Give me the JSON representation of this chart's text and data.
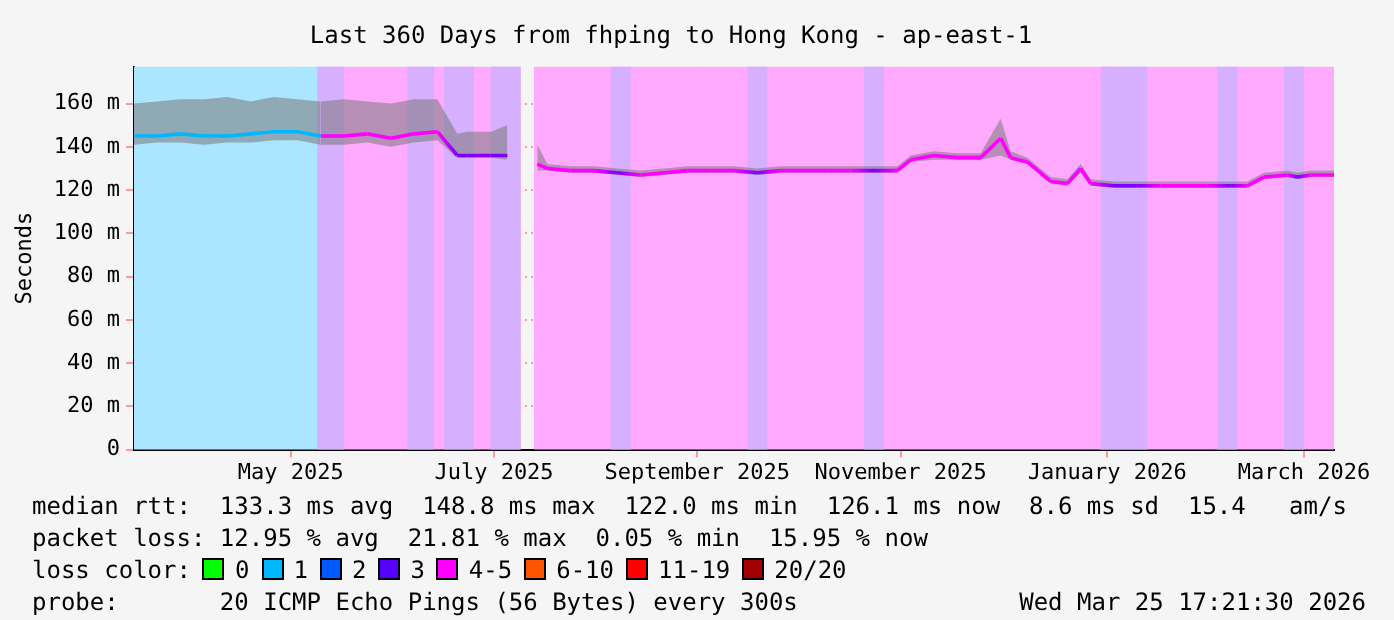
{
  "chart_data": {
    "type": "line",
    "title": "Last 360 Days from fhping to Hong Kong - ap-east-1",
    "ylabel": "Seconds",
    "series": [
      {
        "color": "#00b8ff",
        "x": [
          "2025-03-30",
          "2025-04-06",
          "2025-04-13",
          "2025-04-20",
          "2025-04-27",
          "2025-05-04",
          "2025-05-11",
          "2025-05-18",
          "2025-05-25"
        ],
        "values": [
          145,
          145,
          146,
          145,
          145,
          146,
          147,
          147,
          145
        ],
        "lower": [
          141,
          142,
          142,
          141,
          142,
          142,
          143,
          143,
          141
        ],
        "upper": [
          160,
          161,
          162,
          162,
          163,
          161,
          163,
          162,
          161
        ]
      },
      {
        "color": "#ff00ff",
        "x": [
          "2025-05-25",
          "2025-06-01",
          "2025-06-08",
          "2025-06-15",
          "2025-06-22",
          "2025-06-29",
          "2025-07-05",
          "2025-07-08",
          "2025-07-15",
          "2025-07-20",
          "2025-07-26",
          "2025-07-29",
          "2025-08-01",
          "2025-08-08",
          "2025-08-15",
          "2025-08-22",
          "2025-08-29",
          "2025-09-05",
          "2025-09-12",
          "2025-09-19",
          "2025-09-26",
          "2025-10-03",
          "2025-10-10",
          "2025-10-17",
          "2025-10-24",
          "2025-10-31",
          "2025-11-07",
          "2025-11-14",
          "2025-11-18",
          "2025-11-25",
          "2025-12-02",
          "2025-12-09",
          "2025-12-15",
          "2025-12-18",
          "2025-12-23",
          "2025-12-30",
          "2026-01-04",
          "2026-01-08",
          "2026-01-11",
          "2026-01-18",
          "2026-01-25",
          "2026-02-01",
          "2026-02-08",
          "2026-02-15",
          "2026-02-22",
          "2026-02-27",
          "2026-03-04",
          "2026-03-11",
          "2026-03-14",
          "2026-03-18",
          "2026-03-25"
        ],
        "values": [
          145,
          145,
          146,
          144,
          146,
          147,
          136,
          136,
          136,
          136,
          null,
          132,
          130,
          129,
          129,
          128,
          127,
          128,
          129,
          129,
          129,
          128,
          129,
          129,
          129,
          129,
          129,
          129,
          134,
          136,
          135,
          135,
          144,
          135,
          133,
          124,
          123,
          130,
          123,
          122,
          122,
          122,
          122,
          122,
          122,
          122,
          126,
          127,
          126,
          127,
          127
        ],
        "lower": [
          141,
          141,
          142,
          140,
          142,
          143,
          135,
          135,
          135,
          134,
          null,
          129,
          129,
          128,
          128,
          127,
          126,
          127,
          128,
          128,
          128,
          127,
          128,
          128,
          128,
          128,
          128,
          128,
          133,
          134,
          134,
          134,
          136,
          134,
          132,
          123,
          122,
          128,
          122,
          121,
          121,
          121,
          121,
          121,
          121,
          121,
          125,
          126,
          125,
          126,
          126
        ],
        "upper": [
          161,
          162,
          161,
          160,
          162,
          162,
          146,
          147,
          147,
          150,
          null,
          141,
          132,
          131,
          131,
          130,
          129,
          130,
          131,
          131,
          131,
          130,
          131,
          131,
          131,
          131,
          131,
          131,
          136,
          138,
          137,
          137,
          153,
          138,
          135,
          126,
          125,
          132,
          125,
          124,
          124,
          124,
          124,
          124,
          124,
          124,
          128,
          129,
          128,
          129,
          129
        ],
        "colors": [
          "#ff00ff",
          "#ff00ff",
          "#ff00ff",
          "#ff00ff",
          "#ff00ff",
          "#ff00ff",
          "#7f00ff",
          "#7f00ff",
          "#7f00ff",
          "#7f00ff",
          null,
          "#ff00ff",
          "#ff00ff",
          "#ff00ff",
          "#ff00ff",
          "#7f00ff",
          "#ff00ff",
          "#ff00ff",
          "#ff00ff",
          "#ff00ff",
          "#ff00ff",
          "#7f00ff",
          "#ff00ff",
          "#ff00ff",
          "#ff00ff",
          "#ff00ff",
          "#7f00ff",
          "#ff00ff",
          "#ff00ff",
          "#ff00ff",
          "#ff00ff",
          "#ff00ff",
          "#ff00ff",
          "#ff00ff",
          "#ff00ff",
          "#ff00ff",
          "#ff00ff",
          "#ff00ff",
          "#ff00ff",
          "#7f00ff",
          "#7f00ff",
          "#ff00ff",
          "#ff00ff",
          "#ff00ff",
          "#7f00ff",
          "#ff00ff",
          "#ff00ff",
          "#ff00ff",
          "#7f00ff",
          "#ff00ff",
          "#ff00ff"
        ]
      },
      {
        "name": "0",
        "color": "#00ff00",
        "values": [
          null
        ]
      },
      {
        "name": "1",
        "color": "#00b8ff",
        "values": [
          null
        ]
      },
      {
        "name": "2",
        "color": "#0059ff",
        "values": [
          null
        ]
      },
      {
        "name": "3",
        "color": "#5500ff",
        "values": [
          null
        ]
      },
      {
        "name": "4-5",
        "color": "#ff00ff",
        "values": [
          null
        ]
      },
      {
        "name": "6-10",
        "color": "#ff5500",
        "values": [
          null
        ]
      },
      {
        "name": "11-19",
        "color": "#ff0000",
        "values": [
          null
        ]
      },
      {
        "name": "20/20",
        "color": "#a10000",
        "values": [
          null
        ]
      }
    ],
    "legend": "bottom",
    "legend_title": "loss color:",
    "bands": [
      {
        "axis": "x",
        "from": "2025-03-30",
        "to": "2025-05-24",
        "color": "#aae6ff"
      },
      {
        "axis": "x",
        "from": "2025-05-24",
        "to": "2025-07-24",
        "color": "#ffaaff"
      },
      {
        "axis": "x",
        "from": "2025-05-24",
        "to": "2025-06-01",
        "color": "#d6b0ff"
      },
      {
        "axis": "x",
        "from": "2025-06-20",
        "to": "2025-06-28",
        "color": "#d6b0ff"
      },
      {
        "axis": "x",
        "from": "2025-07-01",
        "to": "2025-07-10",
        "color": "#d6b0ff"
      },
      {
        "axis": "x",
        "from": "2025-07-15",
        "to": "2025-07-24",
        "color": "#d6b0ff"
      },
      {
        "axis": "x",
        "from": "2025-07-28",
        "to": "2026-03-25",
        "color": "#ffaaff"
      },
      {
        "axis": "x",
        "from": "2025-08-20",
        "to": "2025-08-26",
        "color": "#d6b0ff"
      },
      {
        "axis": "x",
        "from": "2025-09-30",
        "to": "2025-10-06",
        "color": "#d6b0ff"
      },
      {
        "axis": "x",
        "from": "2025-11-04",
        "to": "2025-11-10",
        "color": "#d6b0ff"
      },
      {
        "axis": "x",
        "from": "2026-01-14",
        "to": "2026-01-28",
        "color": "#d6b0ff"
      },
      {
        "axis": "x",
        "from": "2026-02-18",
        "to": "2026-02-24",
        "color": "#d6b0ff"
      },
      {
        "axis": "x",
        "from": "2026-03-10",
        "to": "2026-03-16",
        "color": "#d6b0ff"
      }
    ],
    "xlim": [
      "2025-03-30",
      "2026-03-25"
    ],
    "xticks": [
      {
        "value": "2025-05-16",
        "label": "May 2025"
      },
      {
        "value": "2025-07-16",
        "label": "July 2025"
      },
      {
        "value": "2025-09-15",
        "label": "September 2025"
      },
      {
        "value": "2025-11-15",
        "label": "November 2025"
      },
      {
        "value": "2026-01-16",
        "label": "January 2026"
      },
      {
        "value": "2026-03-16",
        "label": "March 2026"
      }
    ],
    "ylim": [
      0,
      177
    ],
    "yticks": [
      0,
      {
        "value": 20,
        "label": "20 m"
      },
      {
        "value": 40,
        "label": "40 m"
      },
      {
        "value": 60,
        "label": "60 m"
      },
      {
        "value": 80,
        "label": "80 m"
      },
      {
        "value": 100,
        "label": "100 m"
      },
      {
        "value": 120,
        "label": "120 m"
      },
      {
        "value": 140,
        "label": "140 m"
      },
      {
        "value": 160,
        "label": "160 m"
      }
    ],
    "grid": true,
    "marker": "none",
    "line_style": "solid",
    "annotations": [
      "median rtt:  133.3 ms avg  148.8 ms max  122.0 ms min  126.1 ms now  8.6 ms sd  15.4   am/s",
      "packet loss: 12.95 % avg  21.81 % max  0.05 % min  15.95 % now",
      "probe:       20 ICMP Echo Pings (56 Bytes) every 300s",
      "Wed Mar 25 17:21:30 2026"
    ]
  }
}
